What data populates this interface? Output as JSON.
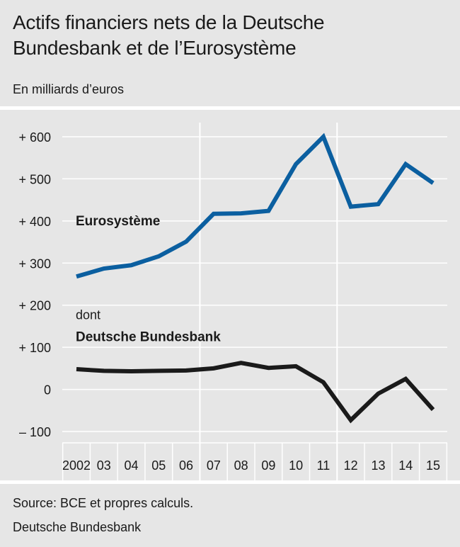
{
  "title_line1": "Actifs financiers nets de la Deutsche",
  "title_line2": "Bundesbank et de l’Eurosystème",
  "subtitle": "En milliards d’euros",
  "footer": {
    "source": "Source: BCE et propres calculs.",
    "publisher": "Deutsche Bundesbank"
  },
  "colors": {
    "eurosystem": "#0b5fa0",
    "bundesbank": "#1a1a1a",
    "grid": "#ffffff",
    "background": "#e6e6e6"
  },
  "chart_data": {
    "type": "line",
    "title": "Actifs financiers nets de la Deutsche Bundesbank et de l’Eurosystème",
    "ylabel": "En milliards d’euros",
    "ylim": [
      -120,
      620
    ],
    "yticks": [
      600,
      500,
      400,
      300,
      200,
      100,
      0,
      -100
    ],
    "ytick_labels": [
      "+ 600",
      "+ 500",
      "+ 400",
      "+ 300",
      "+ 200",
      "+ 100",
      "0",
      "– 100"
    ],
    "categories": [
      "2002",
      "03",
      "04",
      "05",
      "06",
      "07",
      "08",
      "09",
      "10",
      "11",
      "12",
      "13",
      "14",
      "15"
    ],
    "grid": true,
    "series": [
      {
        "name": "Eurosystème",
        "values": [
          268,
          287,
          295,
          316,
          351,
          417,
          418,
          424,
          535,
          600,
          434,
          440,
          535,
          490
        ]
      },
      {
        "name": "Deutsche Bundesbank",
        "name_prefix": "dont",
        "values": [
          48,
          44,
          43,
          44,
          45,
          50,
          63,
          51,
          55,
          17,
          -73,
          -10,
          25,
          -48
        ]
      }
    ]
  }
}
